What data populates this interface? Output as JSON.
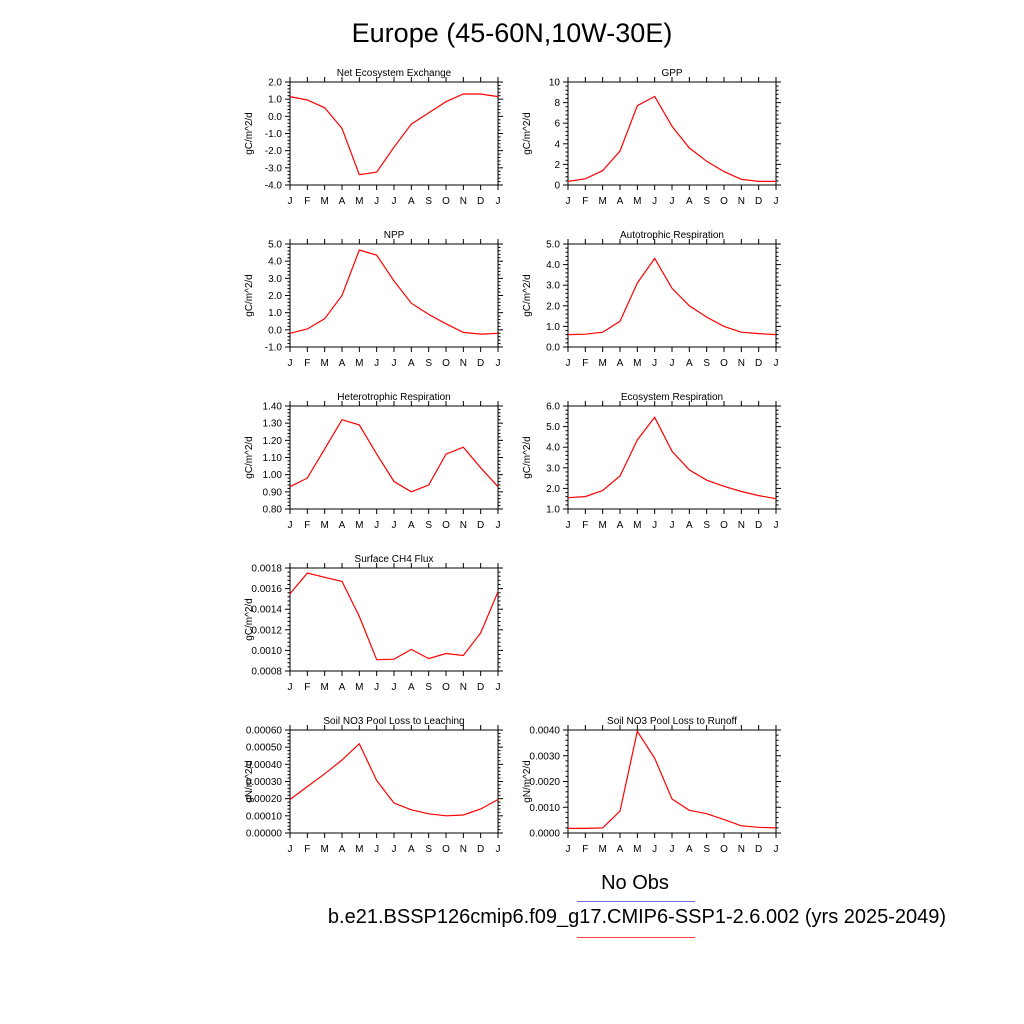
{
  "page": {
    "title": "Europe (45-60N,10W-30E)",
    "legend": {
      "obs_label": "No Obs",
      "case_label": "b.e21.BSSP126cmip6.f09_g17.CMIP6-SSP1-2.6.002 (yrs 2025-2049)",
      "obs_color": "#6f6fe0",
      "case_color": "#ff3a3a"
    }
  },
  "colors": {
    "series": "#ff0000",
    "axis": "#000000"
  },
  "chart_data": [
    {
      "type": "line",
      "title": "Net Ecosystem Exchange",
      "ylabel": "gC/m^2/d",
      "categories": [
        "J",
        "F",
        "M",
        "A",
        "M",
        "J",
        "J",
        "A",
        "S",
        "O",
        "N",
        "D",
        "J"
      ],
      "values": [
        1.15,
        0.95,
        0.5,
        -0.7,
        -3.4,
        -3.25,
        -1.8,
        -0.45,
        0.2,
        0.85,
        1.3,
        1.3,
        1.15
      ],
      "ylim": [
        -4.0,
        2.0
      ],
      "yticks": [
        -4.0,
        -3.0,
        -2.0,
        -1.0,
        0.0,
        1.0,
        2.0
      ],
      "ytick_labels": [
        "-4.0",
        "-3.0",
        "-2.0",
        "-1.0",
        "0.0",
        "1.0",
        "2.0"
      ]
    },
    {
      "type": "line",
      "title": "GPP",
      "ylabel": "gC/m^2/d",
      "categories": [
        "J",
        "F",
        "M",
        "A",
        "M",
        "J",
        "J",
        "A",
        "S",
        "O",
        "N",
        "D",
        "J"
      ],
      "values": [
        0.35,
        0.6,
        1.4,
        3.3,
        7.7,
        8.6,
        5.7,
        3.6,
        2.3,
        1.3,
        0.55,
        0.35,
        0.35
      ],
      "ylim": [
        0,
        10
      ],
      "yticks": [
        0,
        2,
        4,
        6,
        8,
        10
      ],
      "ytick_labels": [
        "0",
        "2",
        "4",
        "6",
        "8",
        "10"
      ]
    },
    {
      "type": "line",
      "title": "NPP",
      "ylabel": "gC/m^2/d",
      "categories": [
        "J",
        "F",
        "M",
        "A",
        "M",
        "J",
        "J",
        "A",
        "S",
        "O",
        "N",
        "D",
        "J"
      ],
      "values": [
        -0.2,
        0.05,
        0.65,
        2.0,
        4.65,
        4.35,
        2.85,
        1.55,
        0.9,
        0.35,
        -0.15,
        -0.25,
        -0.2
      ],
      "ylim": [
        -1.0,
        5.0
      ],
      "yticks": [
        -1.0,
        0.0,
        1.0,
        2.0,
        3.0,
        4.0,
        5.0
      ],
      "ytick_labels": [
        "-1.0",
        "0.0",
        "1.0",
        "2.0",
        "3.0",
        "4.0",
        "5.0"
      ]
    },
    {
      "type": "line",
      "title": "Autotrophic Respiration",
      "ylabel": "gC/m^2/d",
      "categories": [
        "J",
        "F",
        "M",
        "A",
        "M",
        "J",
        "J",
        "A",
        "S",
        "O",
        "N",
        "D",
        "J"
      ],
      "values": [
        0.6,
        0.62,
        0.72,
        1.25,
        3.1,
        4.3,
        2.85,
        2.0,
        1.45,
        1.0,
        0.72,
        0.65,
        0.6
      ],
      "ylim": [
        0.0,
        5.0
      ],
      "yticks": [
        0.0,
        1.0,
        2.0,
        3.0,
        4.0,
        5.0
      ],
      "ytick_labels": [
        "0.0",
        "1.0",
        "2.0",
        "3.0",
        "4.0",
        "5.0"
      ]
    },
    {
      "type": "line",
      "title": "Heterotrophic Respiration",
      "ylabel": "gC/m^2/d",
      "categories": [
        "J",
        "F",
        "M",
        "A",
        "M",
        "J",
        "J",
        "A",
        "S",
        "O",
        "N",
        "D",
        "J"
      ],
      "values": [
        0.93,
        0.98,
        1.15,
        1.32,
        1.29,
        1.12,
        0.96,
        0.9,
        0.94,
        1.12,
        1.16,
        1.04,
        0.93
      ],
      "ylim": [
        0.8,
        1.4
      ],
      "yticks": [
        0.8,
        0.9,
        1.0,
        1.1,
        1.2,
        1.3,
        1.4
      ],
      "ytick_labels": [
        "0.80",
        "0.90",
        "1.00",
        "1.10",
        "1.20",
        "1.30",
        "1.40"
      ]
    },
    {
      "type": "line",
      "title": "Ecosystem Respiration",
      "ylabel": "gC/m^2/d",
      "categories": [
        "J",
        "F",
        "M",
        "A",
        "M",
        "J",
        "J",
        "A",
        "S",
        "O",
        "N",
        "D",
        "J"
      ],
      "values": [
        1.55,
        1.6,
        1.9,
        2.6,
        4.35,
        5.45,
        3.8,
        2.9,
        2.4,
        2.1,
        1.85,
        1.65,
        1.5
      ],
      "ylim": [
        1.0,
        6.0
      ],
      "yticks": [
        1.0,
        2.0,
        3.0,
        4.0,
        5.0,
        6.0
      ],
      "ytick_labels": [
        "1.0",
        "2.0",
        "3.0",
        "4.0",
        "5.0",
        "6.0"
      ]
    },
    {
      "type": "line",
      "title": "Surface CH4 Flux",
      "ylabel": "gC/m^2/d",
      "categories": [
        "J",
        "F",
        "M",
        "A",
        "M",
        "J",
        "J",
        "A",
        "S",
        "O",
        "N",
        "D",
        "J"
      ],
      "values": [
        0.00155,
        0.00175,
        0.00171,
        0.00167,
        0.00133,
        0.00091,
        0.000915,
        0.00101,
        0.00092,
        0.00097,
        0.00095,
        0.00117,
        0.00157
      ],
      "ylim": [
        0.0008,
        0.0018
      ],
      "yticks": [
        0.0008,
        0.001,
        0.0012,
        0.0014,
        0.0016,
        0.0018
      ],
      "ytick_labels": [
        "0.0008",
        "0.0010",
        "0.0012",
        "0.0014",
        "0.0016",
        "0.0018"
      ]
    },
    {
      "type": "line",
      "title": "Soil NO3 Pool Loss to Leaching",
      "ylabel": "gN/m^2/d",
      "categories": [
        "J",
        "F",
        "M",
        "A",
        "M",
        "J",
        "J",
        "A",
        "S",
        "O",
        "N",
        "D",
        "J"
      ],
      "values": [
        0.000195,
        0.00027,
        0.000345,
        0.000425,
        0.00052,
        0.000305,
        0.000175,
        0.000135,
        0.000112,
        0.0001,
        0.000105,
        0.00014,
        0.000195
      ],
      "ylim": [
        0.0,
        0.0006
      ],
      "yticks": [
        0.0,
        0.0001,
        0.0002,
        0.0003,
        0.0004,
        0.0005,
        0.0006
      ],
      "ytick_labels": [
        "0.00000",
        "0.00010",
        "0.00020",
        "0.00030",
        "0.00040",
        "0.00050",
        "0.00060"
      ]
    },
    {
      "type": "line",
      "title": "Soil NO3 Pool Loss to Runoff",
      "ylabel": "gN/m^2/d",
      "categories": [
        "J",
        "F",
        "M",
        "A",
        "M",
        "J",
        "J",
        "A",
        "S",
        "O",
        "N",
        "D",
        "J"
      ],
      "values": [
        0.00018,
        0.00018,
        0.0002,
        0.00085,
        0.00395,
        0.0029,
        0.00132,
        0.00088,
        0.00075,
        0.00052,
        0.00028,
        0.00022,
        0.0002
      ],
      "ylim": [
        0.0,
        0.004
      ],
      "yticks": [
        0.0,
        0.001,
        0.002,
        0.003,
        0.004
      ],
      "ytick_labels": [
        "0.0000",
        "0.0010",
        "0.0020",
        "0.0030",
        "0.0040"
      ]
    }
  ]
}
